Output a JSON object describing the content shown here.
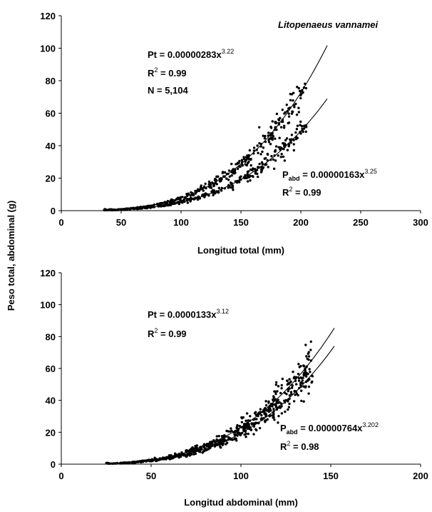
{
  "figure": {
    "shared_ylabel": "Peso total, abdominal (g)",
    "species": "Litopenaeus vannamei"
  },
  "chart_data": [
    {
      "type": "scatter",
      "xlabel": "Longitud total (mm)",
      "ylabel": "Peso total, abdominal (g)",
      "xlim": [
        0,
        300
      ],
      "ylim": [
        0,
        120
      ],
      "xticks": [
        "0",
        "50",
        "100",
        "150",
        "200",
        "250",
        "300"
      ],
      "yticks": [
        "0",
        "20",
        "40",
        "60",
        "80",
        "100",
        "120"
      ],
      "series": [
        {
          "name": "Pt",
          "a": 2.83e-06,
          "b": 3.22,
          "x_range": [
            35,
            222
          ],
          "scatter_range": [
            35,
            205
          ],
          "spread": 0.08,
          "n_points": 340
        },
        {
          "name": "Pabd",
          "a": 1.63e-06,
          "b": 3.25,
          "x_range": [
            35,
            222
          ],
          "scatter_range": [
            35,
            205
          ],
          "spread": 0.08,
          "n_points": 300
        }
      ],
      "annotations": {
        "eq1": {
          "prefix": "Pt = 0.00000283x",
          "exp": "3.22"
        },
        "eq1_r2": {
          "r": "R",
          "sup": "2",
          "rest": " = 0.99"
        },
        "eq1_n": "N = 5,104",
        "eq2": {
          "p": "P",
          "sub": "abd",
          "mid": " = 0.00000163x",
          "exp": "3.25"
        },
        "eq2_r2": {
          "r": "R",
          "sup": "2",
          "rest": " = 0.99"
        }
      }
    },
    {
      "type": "scatter",
      "xlabel": "Longitud abdominal (mm)",
      "ylabel": "Peso total, abdominal (g)",
      "xlim": [
        0,
        200
      ],
      "ylim": [
        0,
        120
      ],
      "xticks": [
        "0",
        "50",
        "100",
        "150",
        "200"
      ],
      "yticks": [
        "0",
        "20",
        "40",
        "60",
        "80",
        "100",
        "120"
      ],
      "series": [
        {
          "name": "Pt",
          "a": 1.33e-05,
          "b": 3.12,
          "x_range": [
            25,
            152
          ],
          "scatter_range": [
            25,
            140
          ],
          "spread": 0.1,
          "n_points": 340
        },
        {
          "name": "Pabd",
          "a": 7.64e-06,
          "b": 3.202,
          "x_range": [
            25,
            152
          ],
          "scatter_range": [
            25,
            140
          ],
          "spread": 0.1,
          "n_points": 300
        }
      ],
      "annotations": {
        "eq1": {
          "prefix": "Pt = 0.0000133x",
          "exp": "3.12"
        },
        "eq1_r2": {
          "r": "R",
          "sup": "2",
          "rest": " = 0.99"
        },
        "eq2": {
          "p": "P",
          "sub": "abd",
          "mid": " = 0.00000764x",
          "exp": "3.202"
        },
        "eq2_r2": {
          "r": "R",
          "sup": "2",
          "rest": " = 0.98"
        }
      }
    }
  ]
}
